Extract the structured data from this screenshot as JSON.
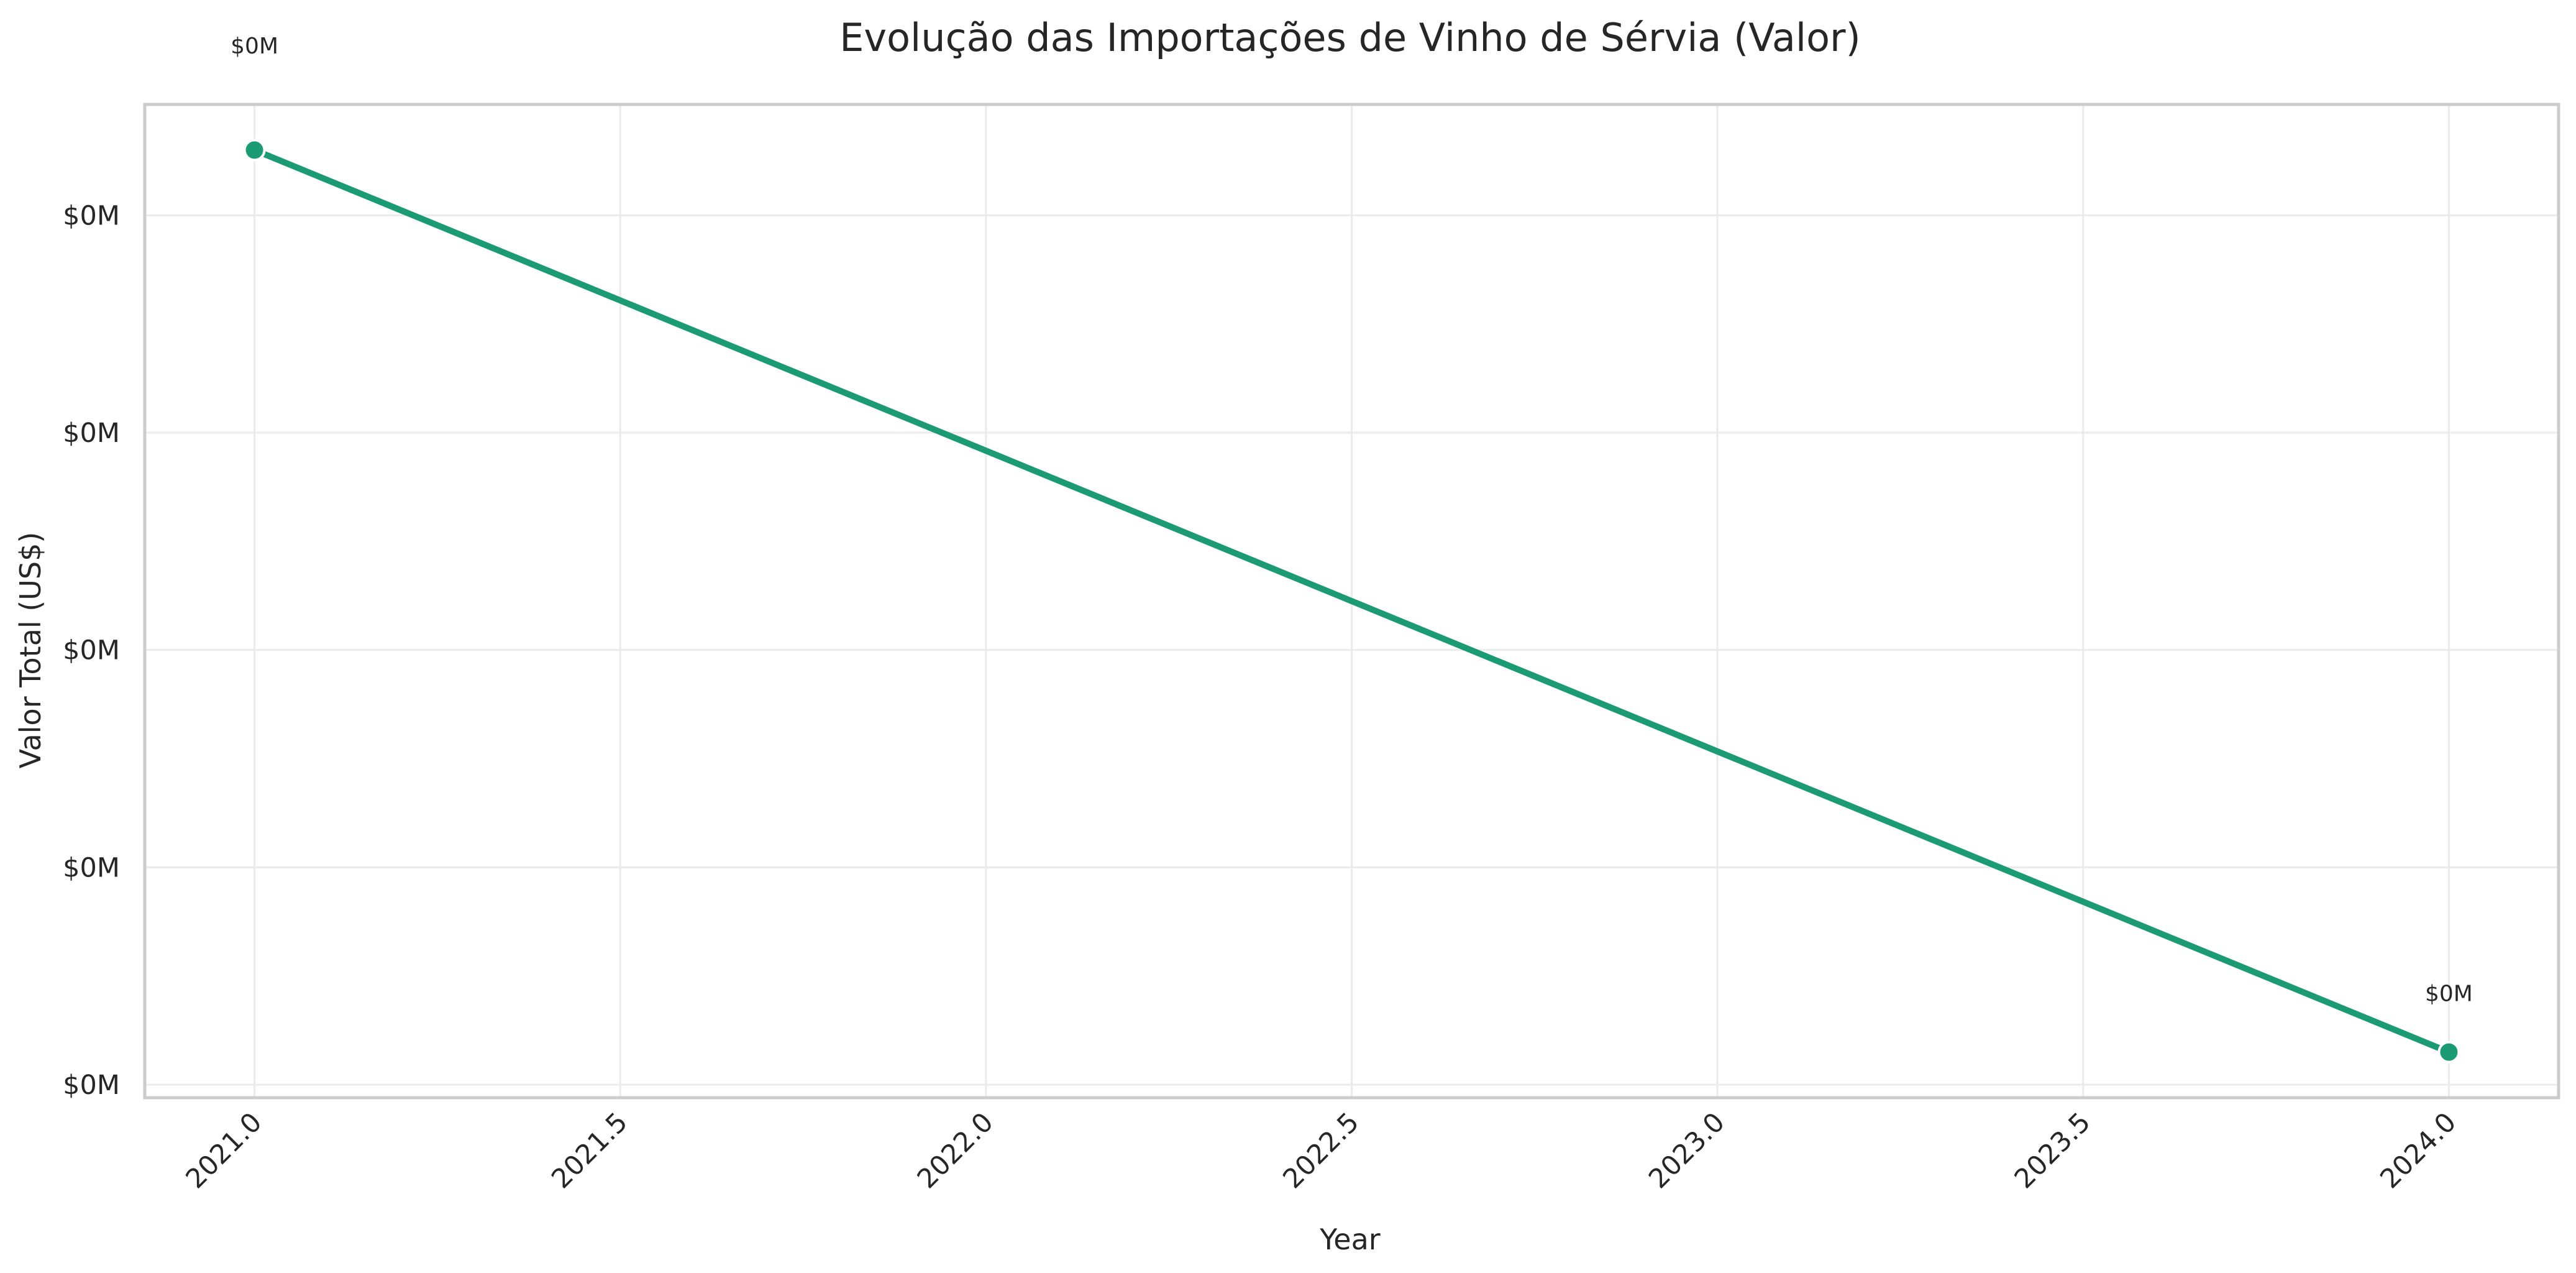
{
  "colors": {
    "line": "#1b9a73",
    "grid": "#ebebeb",
    "frame": "#cccccc",
    "text": "#262626"
  },
  "chart_data": {
    "type": "line",
    "title": "Evolução das Importações de Vinho de Sérvia (Valor)",
    "xlabel": "Year",
    "ylabel": "Valor Total (US$)",
    "x_ticks": [
      "2021.0",
      "2021.5",
      "2022.0",
      "2022.5",
      "2023.0",
      "2023.5",
      "2024.0"
    ],
    "x_tick_values": [
      2021.0,
      2021.5,
      2022.0,
      2022.5,
      2023.0,
      2023.5,
      2024.0
    ],
    "xlim": [
      2020.85,
      2024.15
    ],
    "y_ticks": [
      "$0M",
      "$0M",
      "$0M",
      "$0M",
      "$0M"
    ],
    "y_tick_values": [
      0.4,
      0.3,
      0.2,
      0.1,
      0.0
    ],
    "ylim": [
      -0.006,
      0.451
    ],
    "grid": true,
    "series": [
      {
        "x": [
          2021,
          2024
        ],
        "values": [
          0.43,
          0.015
        ],
        "labels": [
          "$0M",
          "$0M"
        ]
      }
    ]
  }
}
